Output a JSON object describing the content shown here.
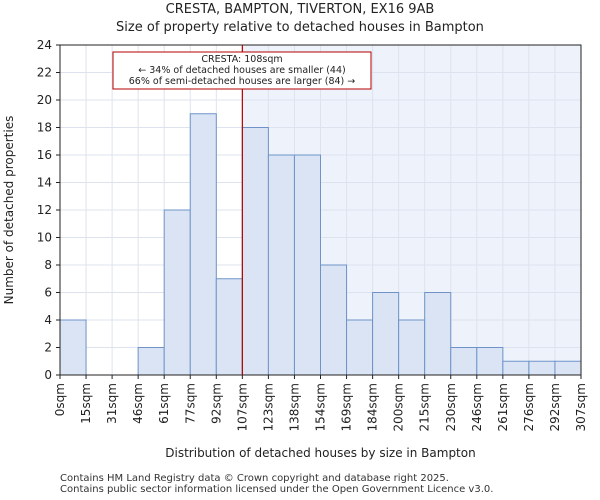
{
  "title": {
    "line1": "CRESTA, BAMPTON, TIVERTON, EX16 9AB",
    "line2": "Size of property relative to detached houses in Bampton"
  },
  "footer": {
    "line1": "Contains HM Land Registry data © Crown copyright and database right 2025.",
    "line2": "Contains public sector information licensed under the Open Government Licence v3.0."
  },
  "chart_data": {
    "type": "bar",
    "title": "Size of property relative to detached houses in Bampton",
    "xlabel": "Distribution of detached houses by size in Bampton",
    "ylabel": "Number of detached properties",
    "ylim": [
      0,
      24
    ],
    "yticks": [
      0,
      2,
      4,
      6,
      8,
      10,
      12,
      14,
      16,
      18,
      20,
      22,
      24
    ],
    "xticks": [
      "0sqm",
      "15sqm",
      "31sqm",
      "46sqm",
      "61sqm",
      "77sqm",
      "92sqm",
      "107sqm",
      "123sqm",
      "138sqm",
      "154sqm",
      "169sqm",
      "184sqm",
      "200sqm",
      "215sqm",
      "230sqm",
      "246sqm",
      "261sqm",
      "276sqm",
      "292sqm",
      "307sqm"
    ],
    "values": [
      4,
      0,
      0,
      2,
      12,
      19,
      7,
      18,
      16,
      16,
      8,
      4,
      6,
      4,
      6,
      2,
      2,
      1,
      1,
      1
    ],
    "marker_bin": 7,
    "annotation": {
      "line1": "CRESTA: 108sqm",
      "line2": "← 34% of detached houses are smaller (44)",
      "line3": "66% of semi-detached houses are larger (84) →"
    },
    "colors": {
      "bar_fill": "#dae4f4",
      "bar_stroke": "#6f93c8",
      "highlight_bg": "#eef2fa",
      "marker": "#b40000",
      "grid": "#dde3ee"
    },
    "grid": true
  }
}
